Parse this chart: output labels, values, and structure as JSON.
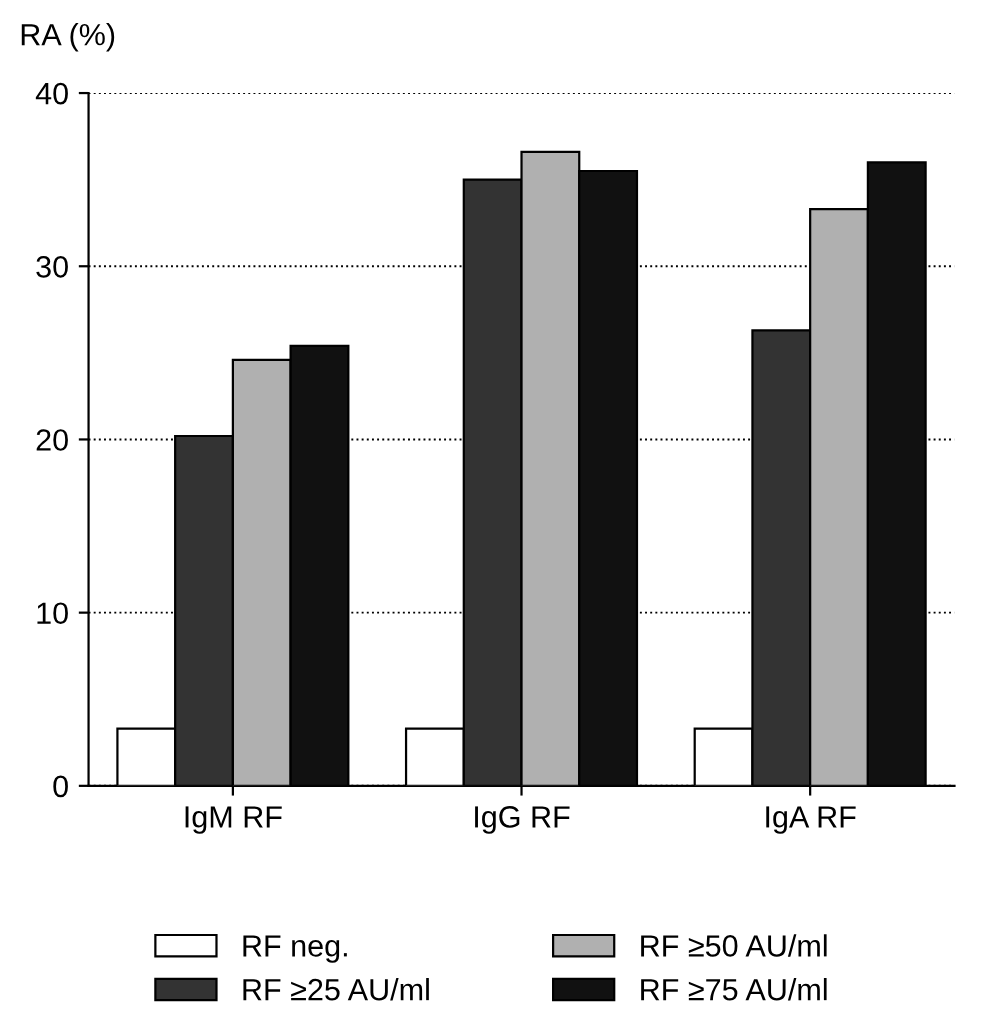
{
  "chart_data": {
    "type": "bar",
    "ylabel": "RA (%)",
    "categories": [
      "IgM RF",
      "IgG RF",
      "IgA RF"
    ],
    "series": [
      {
        "name": "RF neg.",
        "color": "#ffffff",
        "values": [
          3.3,
          3.3,
          3.3
        ]
      },
      {
        "name": "RF ≥25 AU/ml",
        "color": "#333333",
        "values": [
          20.2,
          35,
          26.3
        ]
      },
      {
        "name": "RF ≥50 AU/ml",
        "color": "#b0b0b0",
        "values": [
          24.6,
          36.6,
          33.3
        ]
      },
      {
        "name": "RF ≥75 AU/ml",
        "color": "#111111",
        "values": [
          25.4,
          35.5,
          36
        ]
      }
    ],
    "ylim": [
      0,
      40
    ],
    "yticks": [
      0,
      10,
      20,
      30,
      40
    ],
    "grid": "y",
    "legend": "bottom"
  }
}
